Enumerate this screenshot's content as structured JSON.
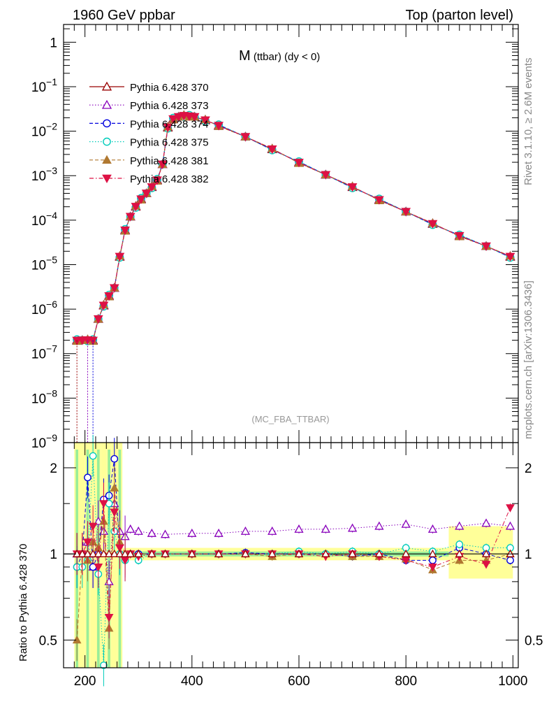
{
  "header": {
    "left": "1960 GeV ppbar",
    "right": "Top (parton level)"
  },
  "side": {
    "rivet": "Rivet 3.1.10, ≥ 2.6M events",
    "source": "mcplots.cern.ch [arXiv:1306.3436]"
  },
  "chart_data": [
    {
      "type": "line",
      "title_main": "M",
      "title_sub": " (ttbar) (dy < 0)",
      "watermark": "(MC_FBA_TTBAR)",
      "yscale": "log",
      "xlim": [
        160,
        1010
      ],
      "ylim": [
        1e-09,
        2.5
      ],
      "y_ticks": [
        {
          "value": 1,
          "label": "1"
        },
        {
          "value": 0.1,
          "base": "10",
          "exp": "−1"
        },
        {
          "value": 0.01,
          "base": "10",
          "exp": "−2"
        },
        {
          "value": 0.001,
          "base": "10",
          "exp": "−3"
        },
        {
          "value": 0.0001,
          "base": "10",
          "exp": "−4"
        },
        {
          "value": 1e-05,
          "base": "10",
          "exp": "−5"
        },
        {
          "value": 1e-06,
          "base": "10",
          "exp": "−6"
        },
        {
          "value": 1e-07,
          "base": "10",
          "exp": "−7"
        },
        {
          "value": 1e-08,
          "base": "10",
          "exp": "−8"
        },
        {
          "value": 1e-09,
          "base": "10",
          "exp": "−9"
        }
      ],
      "legend_placement": "top-left",
      "reference": {
        "x": [
          185,
          195,
          205,
          215,
          225,
          235,
          245,
          255,
          265,
          275,
          285,
          295,
          305,
          315,
          325,
          335,
          345,
          355,
          365,
          375,
          385,
          395,
          405,
          425,
          450,
          500,
          550,
          600,
          650,
          700,
          750,
          800,
          850,
          900,
          950,
          995
        ],
        "y": [
          2e-07,
          2e-07,
          2e-07,
          2e-07,
          6e-07,
          1.2e-06,
          2e-06,
          3e-06,
          1.5e-05,
          6e-05,
          0.00012,
          0.0002,
          0.0003,
          0.0004,
          0.00055,
          0.0008,
          0.0018,
          0.012,
          0.019,
          0.021,
          0.022,
          0.022,
          0.021,
          0.0175,
          0.0135,
          0.0075,
          0.0039,
          0.002,
          0.00105,
          0.00055,
          0.00029,
          0.000155,
          8.2e-05,
          4.5e-05,
          2.6e-05,
          1.5e-05
        ]
      },
      "series": [
        {
          "name": "Pythia 6.428 370",
          "color": "#990000",
          "marker": "triangle-open",
          "dash": "solid"
        },
        {
          "name": "Pythia 6.428 373",
          "color": "#8800bb",
          "marker": "triangle-open",
          "dash": "dotted"
        },
        {
          "name": "Pythia 6.428 374",
          "color": "#0000dd",
          "marker": "circle-open",
          "dash": "dashed"
        },
        {
          "name": "Pythia 6.428 375",
          "color": "#00ccbb",
          "marker": "circle-open",
          "dash": "dotted"
        },
        {
          "name": "Pythia 6.428 381",
          "color": "#b07830",
          "marker": "triangle-filled",
          "dash": "dashed"
        },
        {
          "name": "Pythia 6.428 382",
          "color": "#dd1144",
          "marker": "triangle-down-filled",
          "dash": "dashdot"
        }
      ]
    },
    {
      "type": "line",
      "ylabel": "Ratio to Pythia 6.428 370",
      "yscale": "log",
      "xlim": [
        160,
        1010
      ],
      "ylim": [
        0.4,
        2.45
      ],
      "x_ticks": [
        200,
        400,
        600,
        800,
        1000
      ],
      "y_ticks": [
        {
          "value": 2,
          "label": "2"
        },
        {
          "value": 1,
          "label": "1"
        },
        {
          "value": 0.5,
          "label": "0.5"
        }
      ],
      "band_colors": {
        "inner": "#99ee99",
        "outer": "#ffff99"
      },
      "ratios": {
        "x": [
          185,
          195,
          205,
          215,
          225,
          235,
          245,
          255,
          265,
          275,
          285,
          300,
          325,
          350,
          400,
          450,
          500,
          550,
          600,
          650,
          700,
          750,
          800,
          850,
          900,
          950,
          995
        ],
        "series": [
          {
            "name": "Pythia 6.428 373",
            "values": [
              1.0,
              1.0,
              1.1,
              0.9,
              1.3,
              1.2,
              0.8,
              1.5,
              1.2,
              1.15,
              1.22,
              1.2,
              1.18,
              1.17,
              1.18,
              1.18,
              1.2,
              1.2,
              1.22,
              1.22,
              1.23,
              1.25,
              1.27,
              1.22,
              1.25,
              1.28,
              1.25
            ]
          },
          {
            "name": "Pythia 6.428 374",
            "values": [
              0.9,
              1.0,
              1.85,
              0.9,
              1.0,
              1.55,
              1.6,
              2.15,
              1.0,
              0.98,
              1.0,
              1.0,
              1.0,
              1.0,
              1.0,
              1.0,
              1.01,
              1.0,
              1.0,
              1.0,
              0.98,
              1.0,
              0.95,
              0.95,
              1.05,
              1.0,
              0.95
            ]
          },
          {
            "name": "Pythia 6.428 375",
            "values": [
              0.9,
              0.9,
              0.95,
              2.2,
              0.85,
              0.4,
              1.5,
              1.2,
              1.0,
              0.95,
              1.0,
              0.95,
              1.0,
              1.0,
              1.0,
              1.0,
              1.0,
              1.0,
              1.02,
              1.0,
              1.02,
              1.0,
              1.05,
              1.02,
              1.08,
              1.05,
              1.05
            ]
          },
          {
            "name": "Pythia 6.428 381",
            "values": [
              0.5,
              1.0,
              0.95,
              1.1,
              1.05,
              1.3,
              0.55,
              1.7,
              1.1,
              1.0,
              1.0,
              1.0,
              1.0,
              1.0,
              1.0,
              1.0,
              1.0,
              0.98,
              1.0,
              1.0,
              0.98,
              0.98,
              0.96,
              0.88,
              0.95,
              0.95,
              1.0
            ]
          },
          {
            "name": "Pythia 6.428 382",
            "values": [
              1.0,
              1.0,
              1.1,
              1.25,
              0.9,
              1.5,
              0.6,
              1.4,
              1.05,
              0.95,
              1.0,
              0.98,
              1.0,
              1.0,
              1.0,
              1.0,
              1.0,
              1.0,
              1.0,
              0.98,
              1.0,
              0.98,
              0.95,
              0.9,
              0.98,
              0.92,
              1.45
            ]
          }
        ]
      }
    }
  ]
}
